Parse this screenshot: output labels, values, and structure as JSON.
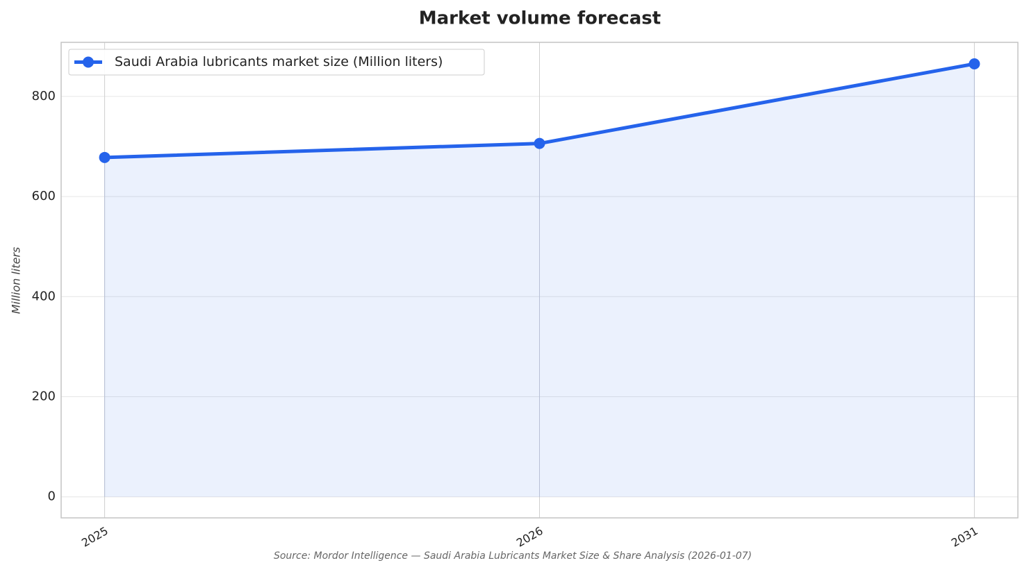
{
  "chart_data": {
    "type": "line",
    "title": "Market volume forecast",
    "y_label": "Million liters",
    "source": "Source: Mordor Intelligence — Saudi Arabia Lubricants Market Size & Share Analysis (2026-01-07)",
    "categories": [
      "2025",
      "2026",
      "2031"
    ],
    "series": [
      {
        "name": "Saudi Arabia lubricants market size (Million liters)",
        "color": "#2563eb",
        "values": [
          678,
          706,
          865
        ]
      }
    ],
    "ylim": [
      -42,
      908
    ],
    "yticks": [
      0,
      200,
      400,
      600,
      800
    ],
    "grid": true,
    "fill_under": true,
    "legend": "upper left"
  }
}
